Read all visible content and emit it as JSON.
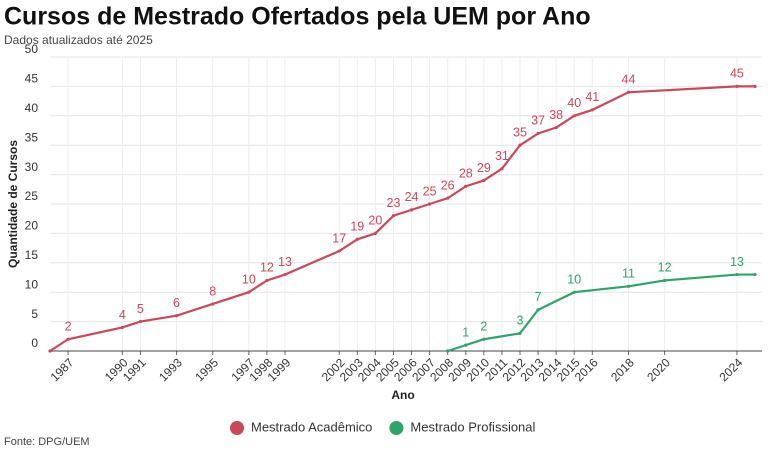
{
  "chart_data": {
    "type": "line",
    "title": "Cursos de Mestrado Ofertados pela UEM por Ano",
    "subtitle": "Dados atualizados até 2025",
    "x_label": "Ano",
    "y_label": "Quantidade de Cursos",
    "source": "Fonte: DPG/UEM",
    "xlim": [
      1986,
      2025
    ],
    "xticks": [
      1987,
      1990,
      1991,
      1993,
      1995,
      1997,
      1998,
      1999,
      2002,
      2003,
      2004,
      2005,
      2006,
      2007,
      2008,
      2009,
      2010,
      2011,
      2012,
      2013,
      2014,
      2015,
      2016,
      2018,
      2020,
      2024
    ],
    "ylim": [
      0,
      50
    ],
    "yticks": [
      0,
      5,
      10,
      15,
      20,
      25,
      30,
      35,
      40,
      45,
      50
    ],
    "grid": true,
    "legend": "bottom",
    "series": [
      {
        "name": "Mestrado Acadêmico",
        "color": "#c9485b",
        "x": [
          1986,
          1987,
          1990,
          1991,
          1993,
          1995,
          1997,
          1998,
          1999,
          2002,
          2003,
          2004,
          2005,
          2006,
          2007,
          2008,
          2009,
          2010,
          2011,
          2012,
          2013,
          2014,
          2015,
          2016,
          2018,
          2024,
          2025
        ],
        "values": [
          0,
          2,
          4,
          5,
          6,
          8,
          10,
          12,
          13,
          17,
          19,
          20,
          23,
          24,
          25,
          26,
          28,
          29,
          31,
          35,
          37,
          38,
          40,
          41,
          44,
          45,
          45
        ],
        "value_labels": [
          null,
          "2",
          "4",
          "5",
          "6",
          "8",
          "10",
          "12",
          "13",
          "17",
          "19",
          "20",
          "23",
          "24",
          "25",
          "26",
          "28",
          "29",
          "31",
          "35",
          "37",
          "38",
          "40",
          "41",
          "44",
          "45",
          null
        ]
      },
      {
        "name": "Mestrado Profissional",
        "color": "#2ea36a",
        "x": [
          2008,
          2009,
          2010,
          2012,
          2013,
          2015,
          2018,
          2020,
          2024,
          2025
        ],
        "values": [
          0,
          1,
          2,
          3,
          7,
          10,
          11,
          12,
          13,
          13
        ],
        "value_labels": [
          null,
          "1",
          "2",
          "3",
          "7",
          "10",
          "11",
          "12",
          "13",
          null
        ]
      }
    ]
  }
}
